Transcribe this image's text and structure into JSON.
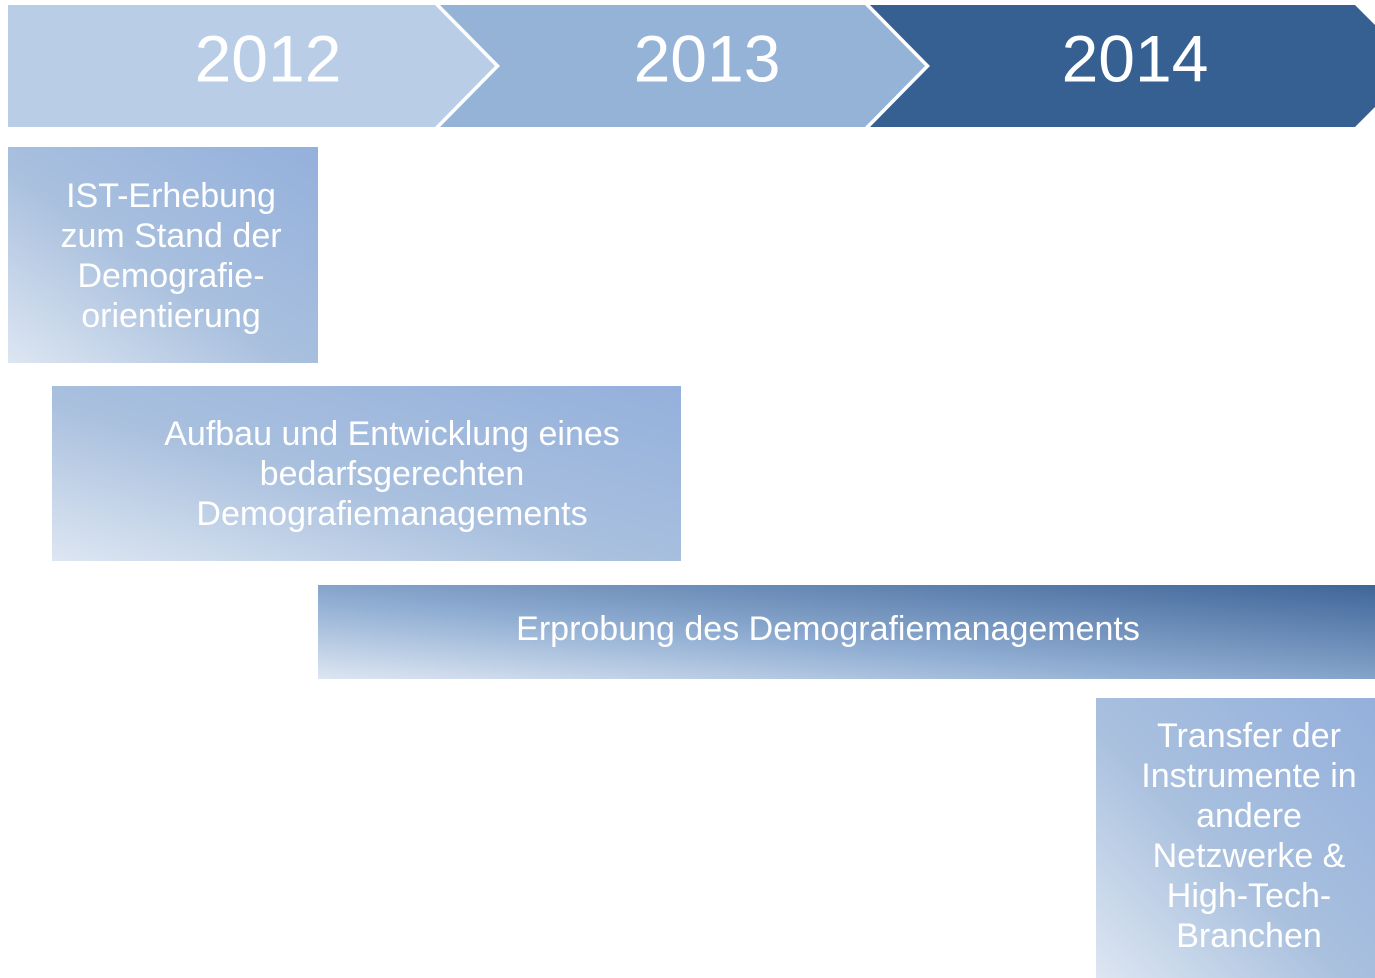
{
  "years": [
    "2012",
    "2013",
    "2014"
  ],
  "tasks": [
    {
      "lines": [
        "IST-Erhebung",
        "zum Stand der",
        "Demografie-",
        "orientierung"
      ]
    },
    {
      "lines": [
        "Aufbau und Entwicklung eines",
        "bedarfsgerechten",
        "Demografiemanagements"
      ]
    },
    {
      "lines": [
        "Erprobung des Demografiemanagements"
      ]
    },
    {
      "lines": [
        "Transfer der",
        "Instrumente in",
        "andere",
        "Netzwerke &",
        "High-Tech-",
        "Branchen"
      ]
    }
  ]
}
